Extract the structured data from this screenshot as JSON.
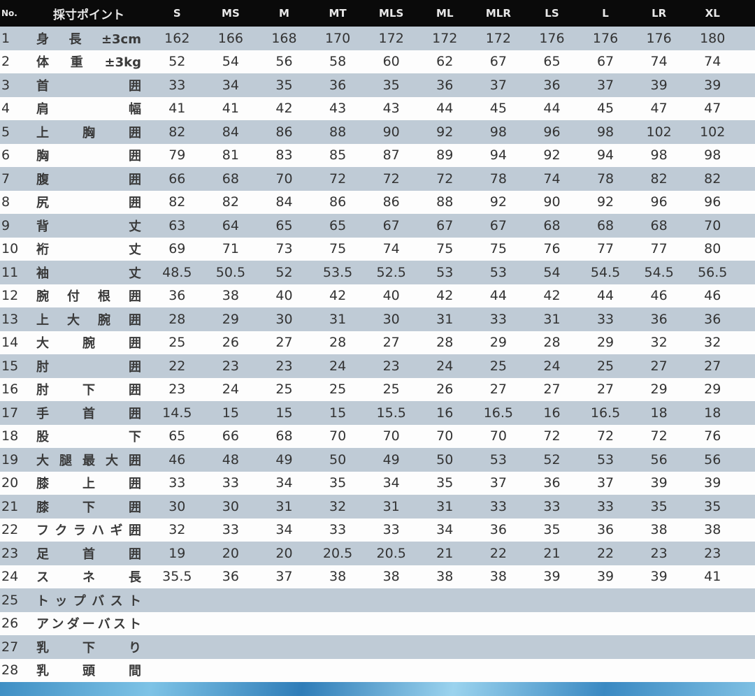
{
  "header": {
    "no": "No.",
    "point": "採寸ポイント",
    "sizes": [
      "S",
      "MS",
      "M",
      "MT",
      "MLS",
      "ML",
      "MLR",
      "LS",
      "L",
      "LR",
      "XL"
    ]
  },
  "rows": [
    {
      "no": "1",
      "label": "身長±3cm",
      "values": [
        "162",
        "166",
        "168",
        "170",
        "172",
        "172",
        "172",
        "176",
        "176",
        "176",
        "180"
      ]
    },
    {
      "no": "2",
      "label": "体重±3kg",
      "values": [
        "52",
        "54",
        "56",
        "58",
        "60",
        "62",
        "67",
        "65",
        "67",
        "74",
        "74"
      ]
    },
    {
      "no": "3",
      "label": "首囲",
      "values": [
        "33",
        "34",
        "35",
        "36",
        "35",
        "36",
        "37",
        "36",
        "37",
        "39",
        "39"
      ]
    },
    {
      "no": "4",
      "label": "肩幅",
      "values": [
        "41",
        "41",
        "42",
        "43",
        "43",
        "44",
        "45",
        "44",
        "45",
        "47",
        "47"
      ]
    },
    {
      "no": "5",
      "label": "上胸囲",
      "values": [
        "82",
        "84",
        "86",
        "88",
        "90",
        "92",
        "98",
        "96",
        "98",
        "102",
        "102"
      ]
    },
    {
      "no": "6",
      "label": "胸囲",
      "values": [
        "79",
        "81",
        "83",
        "85",
        "87",
        "89",
        "94",
        "92",
        "94",
        "98",
        "98"
      ]
    },
    {
      "no": "7",
      "label": "腹囲",
      "values": [
        "66",
        "68",
        "70",
        "72",
        "72",
        "72",
        "78",
        "74",
        "78",
        "82",
        "82"
      ]
    },
    {
      "no": "8",
      "label": "尻囲",
      "values": [
        "82",
        "82",
        "84",
        "86",
        "86",
        "88",
        "92",
        "90",
        "92",
        "96",
        "96"
      ]
    },
    {
      "no": "9",
      "label": "背丈",
      "values": [
        "63",
        "64",
        "65",
        "65",
        "67",
        "67",
        "67",
        "68",
        "68",
        "68",
        "70"
      ]
    },
    {
      "no": "10",
      "label": "裄丈",
      "values": [
        "69",
        "71",
        "73",
        "75",
        "74",
        "75",
        "75",
        "76",
        "77",
        "77",
        "80"
      ]
    },
    {
      "no": "11",
      "label": "袖丈",
      "values": [
        "48.5",
        "50.5",
        "52",
        "53.5",
        "52.5",
        "53",
        "53",
        "54",
        "54.5",
        "54.5",
        "56.5"
      ]
    },
    {
      "no": "12",
      "label": "腕付根囲",
      "values": [
        "36",
        "38",
        "40",
        "42",
        "40",
        "42",
        "44",
        "42",
        "44",
        "46",
        "46"
      ]
    },
    {
      "no": "13",
      "label": "上大腕囲",
      "values": [
        "28",
        "29",
        "30",
        "31",
        "30",
        "31",
        "33",
        "31",
        "33",
        "36",
        "36"
      ]
    },
    {
      "no": "14",
      "label": "大腕囲",
      "values": [
        "25",
        "26",
        "27",
        "28",
        "27",
        "28",
        "29",
        "28",
        "29",
        "32",
        "32"
      ]
    },
    {
      "no": "15",
      "label": "肘囲",
      "values": [
        "22",
        "23",
        "23",
        "24",
        "23",
        "24",
        "25",
        "24",
        "25",
        "27",
        "27"
      ]
    },
    {
      "no": "16",
      "label": "肘下囲",
      "values": [
        "23",
        "24",
        "25",
        "25",
        "25",
        "26",
        "27",
        "27",
        "27",
        "29",
        "29"
      ]
    },
    {
      "no": "17",
      "label": "手首囲",
      "values": [
        "14.5",
        "15",
        "15",
        "15",
        "15.5",
        "16",
        "16.5",
        "16",
        "16.5",
        "18",
        "18"
      ]
    },
    {
      "no": "18",
      "label": "股下",
      "values": [
        "65",
        "66",
        "68",
        "70",
        "70",
        "70",
        "70",
        "72",
        "72",
        "72",
        "76"
      ]
    },
    {
      "no": "19",
      "label": "大腿最大囲",
      "values": [
        "46",
        "48",
        "49",
        "50",
        "49",
        "50",
        "53",
        "52",
        "53",
        "56",
        "56"
      ]
    },
    {
      "no": "20",
      "label": "膝上囲",
      "values": [
        "33",
        "33",
        "34",
        "35",
        "34",
        "35",
        "37",
        "36",
        "37",
        "39",
        "39"
      ]
    },
    {
      "no": "21",
      "label": "膝下囲",
      "values": [
        "30",
        "30",
        "31",
        "32",
        "31",
        "31",
        "33",
        "33",
        "33",
        "35",
        "35"
      ]
    },
    {
      "no": "22",
      "label": "フクラハギ囲",
      "values": [
        "32",
        "33",
        "34",
        "33",
        "33",
        "34",
        "36",
        "35",
        "36",
        "38",
        "38"
      ]
    },
    {
      "no": "23",
      "label": "足首囲",
      "values": [
        "19",
        "20",
        "20",
        "20.5",
        "20.5",
        "21",
        "22",
        "21",
        "22",
        "23",
        "23"
      ]
    },
    {
      "no": "24",
      "label": "スネ長",
      "values": [
        "35.5",
        "36",
        "37",
        "38",
        "38",
        "38",
        "38",
        "39",
        "39",
        "39",
        "41"
      ]
    },
    {
      "no": "25",
      "label": "トップバスト",
      "values": [
        "",
        "",
        "",
        "",
        "",
        "",
        "",
        "",
        "",
        "",
        ""
      ]
    },
    {
      "no": "26",
      "label": "アンダーバスト",
      "values": [
        "",
        "",
        "",
        "",
        "",
        "",
        "",
        "",
        "",
        "",
        ""
      ]
    },
    {
      "no": "27",
      "label": "乳下り",
      "values": [
        "",
        "",
        "",
        "",
        "",
        "",
        "",
        "",
        "",
        "",
        ""
      ]
    },
    {
      "no": "28",
      "label": "乳頭間",
      "values": [
        "",
        "",
        "",
        "",
        "",
        "",
        "",
        "",
        "",
        "",
        ""
      ]
    }
  ],
  "colors": {
    "header_bg": "#0a0a0a",
    "stripe": "#bfcbd6",
    "footer_strip": "#3f8fc4"
  }
}
